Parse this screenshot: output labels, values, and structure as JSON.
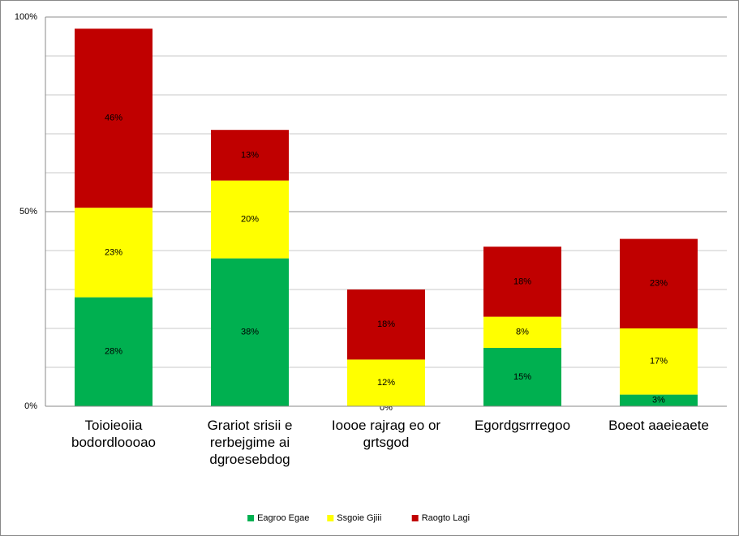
{
  "chart_data": {
    "type": "stacked_bar",
    "categories": [
      "Toioieoiia bodordloooao",
      "Grariot srisii e rerbejgime ai dgroesebdog",
      "Ioooe rajrag eo or grtsgod",
      "Egordgsrrregoo",
      "Boeot aaeieaete"
    ],
    "series": [
      {
        "name": "Eagroo Egae",
        "color": "#00b050",
        "values": [
          28,
          38,
          0,
          15,
          3
        ],
        "value_labels": [
          "28%",
          "38%",
          "0%",
          "15%",
          "3%"
        ]
      },
      {
        "name": "Ssgoie Gjiii",
        "color": "#ffff00",
        "values": [
          23,
          20,
          12,
          8,
          17
        ],
        "value_labels": [
          "23%",
          "20%",
          "12%",
          "8%",
          "17%"
        ]
      },
      {
        "name": "Raogto Lagi",
        "color": "#c00000",
        "values": [
          46,
          13,
          18,
          18,
          23
        ],
        "value_labels": [
          "46%",
          "13%",
          "18%",
          "18%",
          "23%"
        ]
      }
    ],
    "ylim": [
      0,
      100
    ],
    "yticks": [
      {
        "value": 0,
        "label": "0%"
      },
      {
        "value": 50,
        "label": "50%"
      },
      {
        "value": 100,
        "label": "100%"
      }
    ],
    "minor_yticks": [
      10,
      20,
      30,
      40,
      60,
      70,
      80,
      90
    ],
    "grid": true,
    "legend": "bottom"
  }
}
